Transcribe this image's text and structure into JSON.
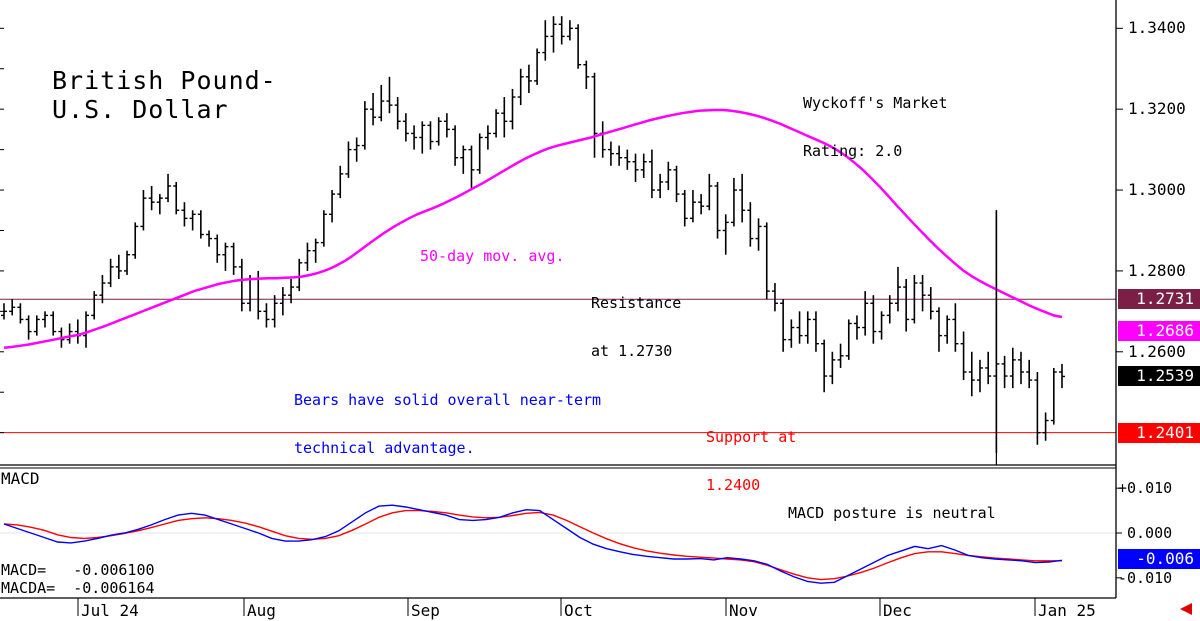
{
  "chart": {
    "title_line1": "British Pound-",
    "title_line2": "U.S. Dollar",
    "rating_line1": "Wyckoff's Market",
    "rating_line2": "Rating: 2.0",
    "ma_label": "50-day mov. avg.",
    "resistance_line1": "Resistance",
    "resistance_line2": "at 1.2730",
    "support_line1": "Support at",
    "support_line2": "1.2400",
    "bears_line1": "Bears have solid overall near-term",
    "bears_line2": "technical advantage.",
    "macd_label": "MACD",
    "macd_posture": "MACD posture is neutral",
    "macd_readout": "MACD=   -0.006100",
    "macda_readout": "MACDA=  -0.006164",
    "price_tags": {
      "resistance": "1.2731",
      "ma": "1.2686",
      "last": "1.2539",
      "support": "1.2401"
    },
    "macd_tag": "-0.006",
    "colors": {
      "ma": "#ff00ff",
      "resistance": "#7b1f47",
      "support": "#ff0000",
      "macd": "#0000ff",
      "macda": "#ff0000",
      "last": "#000000",
      "bears_text": "#0000ff"
    }
  },
  "chart_data": {
    "type": "ohlc",
    "y_axis_ticks": [
      "1.3400",
      "1.3200",
      "1.3000",
      "1.2800",
      "1.2600"
    ],
    "y_axis_values": [
      1.34,
      1.32,
      1.3,
      1.28,
      1.26
    ],
    "ylim": [
      1.232,
      1.347
    ],
    "x_axis_labels": [
      "Jul 24",
      "Aug",
      "Sep",
      "Oct",
      "Nov",
      "Dec",
      "Jan 25"
    ],
    "resistance_level": 1.273,
    "support_level": 1.24,
    "last_price": 1.2539,
    "ma50_last": 1.2686,
    "ohlc": [
      [
        1.269,
        1.272,
        1.268,
        1.27
      ],
      [
        1.27,
        1.273,
        1.269,
        1.271
      ],
      [
        1.271,
        1.272,
        1.267,
        1.268
      ],
      [
        1.268,
        1.269,
        1.263,
        1.265
      ],
      [
        1.265,
        1.269,
        1.264,
        1.268
      ],
      [
        1.268,
        1.27,
        1.266,
        1.269
      ],
      [
        1.269,
        1.27,
        1.264,
        1.265
      ],
      [
        1.265,
        1.266,
        1.261,
        1.263
      ],
      [
        1.263,
        1.267,
        1.262,
        1.265
      ],
      [
        1.265,
        1.268,
        1.262,
        1.264
      ],
      [
        1.264,
        1.27,
        1.261,
        1.269
      ],
      [
        1.269,
        1.275,
        1.268,
        1.274
      ],
      [
        1.274,
        1.279,
        1.272,
        1.277
      ],
      [
        1.277,
        1.283,
        1.276,
        1.281
      ],
      [
        1.281,
        1.284,
        1.278,
        1.28
      ],
      [
        1.28,
        1.285,
        1.279,
        1.284
      ],
      [
        1.284,
        1.292,
        1.283,
        1.291
      ],
      [
        1.291,
        1.3,
        1.29,
        1.298
      ],
      [
        1.298,
        1.301,
        1.295,
        1.297
      ],
      [
        1.297,
        1.299,
        1.294,
        1.298
      ],
      [
        1.298,
        1.304,
        1.297,
        1.301
      ],
      [
        1.301,
        1.302,
        1.294,
        1.295
      ],
      [
        1.295,
        1.297,
        1.291,
        1.293
      ],
      [
        1.293,
        1.295,
        1.29,
        1.294
      ],
      [
        1.294,
        1.295,
        1.288,
        1.289
      ],
      [
        1.289,
        1.29,
        1.286,
        1.288
      ],
      [
        1.288,
        1.289,
        1.282,
        1.284
      ],
      [
        1.284,
        1.287,
        1.28,
        1.286
      ],
      [
        1.286,
        1.287,
        1.279,
        1.281
      ],
      [
        1.281,
        1.283,
        1.27,
        1.272
      ],
      [
        1.272,
        1.279,
        1.27,
        1.278
      ],
      [
        1.278,
        1.28,
        1.268,
        1.27
      ],
      [
        1.27,
        1.272,
        1.266,
        1.268
      ],
      [
        1.268,
        1.274,
        1.266,
        1.272
      ],
      [
        1.272,
        1.276,
        1.269,
        1.274
      ],
      [
        1.274,
        1.278,
        1.272,
        1.276
      ],
      [
        1.276,
        1.283,
        1.275,
        1.282
      ],
      [
        1.282,
        1.287,
        1.28,
        1.285
      ],
      [
        1.285,
        1.288,
        1.282,
        1.287
      ],
      [
        1.287,
        1.295,
        1.286,
        1.294
      ],
      [
        1.294,
        1.3,
        1.292,
        1.299
      ],
      [
        1.299,
        1.306,
        1.298,
        1.304
      ],
      [
        1.304,
        1.312,
        1.303,
        1.31
      ],
      [
        1.31,
        1.313,
        1.307,
        1.311
      ],
      [
        1.311,
        1.322,
        1.31,
        1.32
      ],
      [
        1.32,
        1.324,
        1.316,
        1.318
      ],
      [
        1.318,
        1.326,
        1.317,
        1.322
      ],
      [
        1.322,
        1.328,
        1.319,
        1.321
      ],
      [
        1.321,
        1.323,
        1.315,
        1.317
      ],
      [
        1.317,
        1.319,
        1.312,
        1.314
      ],
      [
        1.314,
        1.316,
        1.31,
        1.313
      ],
      [
        1.313,
        1.317,
        1.309,
        1.316
      ],
      [
        1.316,
        1.317,
        1.31,
        1.312
      ],
      [
        1.312,
        1.318,
        1.311,
        1.317
      ],
      [
        1.317,
        1.319,
        1.313,
        1.315
      ],
      [
        1.315,
        1.316,
        1.306,
        1.308
      ],
      [
        1.308,
        1.311,
        1.304,
        1.31
      ],
      [
        1.31,
        1.311,
        1.3,
        1.305
      ],
      [
        1.305,
        1.314,
        1.304,
        1.313
      ],
      [
        1.313,
        1.316,
        1.31,
        1.314
      ],
      [
        1.314,
        1.32,
        1.313,
        1.319
      ],
      [
        1.319,
        1.323,
        1.313,
        1.317
      ],
      [
        1.317,
        1.325,
        1.315,
        1.323
      ],
      [
        1.323,
        1.33,
        1.321,
        1.328
      ],
      [
        1.328,
        1.331,
        1.324,
        1.327
      ],
      [
        1.327,
        1.335,
        1.326,
        1.334
      ],
      [
        1.334,
        1.342,
        1.332,
        1.338
      ],
      [
        1.338,
        1.343,
        1.334,
        1.341
      ],
      [
        1.341,
        1.343,
        1.336,
        1.338
      ],
      [
        1.338,
        1.342,
        1.337,
        1.34
      ],
      [
        1.34,
        1.341,
        1.33,
        1.331
      ],
      [
        1.331,
        1.332,
        1.325,
        1.328
      ],
      [
        1.328,
        1.329,
        1.308,
        1.314
      ],
      [
        1.314,
        1.317,
        1.308,
        1.31
      ],
      [
        1.31,
        1.312,
        1.306,
        1.309
      ],
      [
        1.309,
        1.311,
        1.306,
        1.308
      ],
      [
        1.308,
        1.31,
        1.305,
        1.307
      ],
      [
        1.307,
        1.309,
        1.302,
        1.305
      ],
      [
        1.305,
        1.309,
        1.303,
        1.307
      ],
      [
        1.307,
        1.31,
        1.298,
        1.3
      ],
      [
        1.3,
        1.304,
        1.298,
        1.302
      ],
      [
        1.302,
        1.307,
        1.3,
        1.305
      ],
      [
        1.305,
        1.306,
        1.297,
        1.299
      ],
      [
        1.299,
        1.3,
        1.291,
        1.293
      ],
      [
        1.293,
        1.3,
        1.292,
        1.297
      ],
      [
        1.297,
        1.299,
        1.294,
        1.296
      ],
      [
        1.296,
        1.304,
        1.295,
        1.301
      ],
      [
        1.301,
        1.302,
        1.288,
        1.29
      ],
      [
        1.29,
        1.294,
        1.284,
        1.292
      ],
      [
        1.292,
        1.303,
        1.291,
        1.3
      ],
      [
        1.3,
        1.304,
        1.292,
        1.295
      ],
      [
        1.295,
        1.297,
        1.286,
        1.288
      ],
      [
        1.288,
        1.293,
        1.285,
        1.291
      ],
      [
        1.291,
        1.292,
        1.273,
        1.275
      ],
      [
        1.275,
        1.277,
        1.27,
        1.272
      ],
      [
        1.272,
        1.273,
        1.26,
        1.263
      ],
      [
        1.263,
        1.268,
        1.261,
        1.266
      ],
      [
        1.266,
        1.27,
        1.262,
        1.264
      ],
      [
        1.264,
        1.27,
        1.262,
        1.268
      ],
      [
        1.268,
        1.27,
        1.26,
        1.262
      ],
      [
        1.262,
        1.263,
        1.25,
        1.254
      ],
      [
        1.254,
        1.26,
        1.252,
        1.258
      ],
      [
        1.258,
        1.262,
        1.256,
        1.259
      ],
      [
        1.259,
        1.268,
        1.258,
        1.267
      ],
      [
        1.267,
        1.269,
        1.263,
        1.266
      ],
      [
        1.266,
        1.275,
        1.264,
        1.272
      ],
      [
        1.272,
        1.274,
        1.262,
        1.265
      ],
      [
        1.265,
        1.27,
        1.263,
        1.269
      ],
      [
        1.269,
        1.274,
        1.267,
        1.272
      ],
      [
        1.272,
        1.281,
        1.27,
        1.276
      ],
      [
        1.276,
        1.278,
        1.265,
        1.268
      ],
      [
        1.268,
        1.279,
        1.267,
        1.277
      ],
      [
        1.277,
        1.279,
        1.27,
        1.274
      ],
      [
        1.274,
        1.276,
        1.268,
        1.27
      ],
      [
        1.27,
        1.271,
        1.26,
        1.264
      ],
      [
        1.264,
        1.269,
        1.262,
        1.268
      ],
      [
        1.268,
        1.272,
        1.26,
        1.262
      ],
      [
        1.262,
        1.265,
        1.253,
        1.255
      ],
      [
        1.255,
        1.26,
        1.249,
        1.253
      ],
      [
        1.253,
        1.258,
        1.25,
        1.256
      ],
      [
        1.256,
        1.26,
        1.252,
        1.254
      ],
      [
        1.254,
        1.295,
        1.235,
        1.257
      ],
      [
        1.257,
        1.259,
        1.251,
        1.254
      ],
      [
        1.254,
        1.261,
        1.251,
        1.258
      ],
      [
        1.258,
        1.26,
        1.252,
        1.255
      ],
      [
        1.255,
        1.258,
        1.251,
        1.253
      ],
      [
        1.253,
        1.255,
        1.237,
        1.24
      ],
      [
        1.24,
        1.245,
        1.238,
        1.243
      ],
      [
        1.243,
        1.256,
        1.242,
        1.255
      ],
      [
        1.255,
        1.257,
        1.251,
        1.2539
      ]
    ],
    "ma50": [
      1.261,
      1.2612,
      1.2615,
      1.2618,
      1.2622,
      1.2626,
      1.263,
      1.2634,
      1.2638,
      1.2642,
      1.2648,
      1.2655,
      1.2662,
      1.267,
      1.2678,
      1.2686,
      1.2694,
      1.2702,
      1.271,
      1.2718,
      1.2726,
      1.2734,
      1.2742,
      1.275,
      1.2756,
      1.2762,
      1.2768,
      1.2772,
      1.2776,
      1.2778,
      1.278,
      1.2781,
      1.2782,
      1.2782,
      1.2783,
      1.2784,
      1.2786,
      1.279,
      1.2795,
      1.2802,
      1.2811,
      1.2822,
      1.2835,
      1.285,
      1.2865,
      1.288,
      1.2894,
      1.2907,
      1.2919,
      1.293,
      1.294,
      1.2948,
      1.2956,
      1.2965,
      1.2975,
      1.2985,
      1.2996,
      1.3007,
      1.3018,
      1.303,
      1.3042,
      1.3054,
      1.3066,
      1.3077,
      1.3087,
      1.3096,
      1.3104,
      1.311,
      1.3115,
      1.312,
      1.3125,
      1.313,
      1.3136,
      1.3142,
      1.3148,
      1.3154,
      1.316,
      1.3166,
      1.3172,
      1.3177,
      1.3182,
      1.3186,
      1.319,
      1.3193,
      1.3196,
      1.3197,
      1.3198,
      1.3198,
      1.3196,
      1.3193,
      1.3189,
      1.3184,
      1.3178,
      1.3171,
      1.3163,
      1.3154,
      1.3145,
      1.3136,
      1.3127,
      1.3118,
      1.3108,
      1.3096,
      1.3082,
      1.3066,
      1.3048,
      1.3028,
      1.3007,
      1.2985,
      1.2962,
      1.294,
      1.2918,
      1.2897,
      1.2876,
      1.2856,
      1.2837,
      1.2819,
      1.2802,
      1.2788,
      1.2776,
      1.2765,
      1.2755,
      1.2745,
      1.2735,
      1.2725,
      1.2715,
      1.2706,
      1.2698,
      1.269,
      1.2686
    ],
    "macd": [
      0.002,
      0.001,
      0.0,
      -0.001,
      -0.002,
      -0.0022,
      -0.0018,
      -0.0012,
      -0.0005,
      0.0,
      0.0008,
      0.0018,
      0.003,
      0.004,
      0.0044,
      0.004,
      0.003,
      0.002,
      0.001,
      0.0,
      -0.0012,
      -0.0018,
      -0.0018,
      -0.0015,
      -0.0008,
      0.0005,
      0.0025,
      0.0045,
      0.006,
      0.0062,
      0.0058,
      0.0052,
      0.0046,
      0.004,
      0.003,
      0.0028,
      0.003,
      0.0035,
      0.0045,
      0.0052,
      0.005,
      0.003,
      0.001,
      -0.001,
      -0.0025,
      -0.0035,
      -0.0042,
      -0.0048,
      -0.0052,
      -0.0055,
      -0.0058,
      -0.0058,
      -0.0057,
      -0.006,
      -0.0055,
      -0.0058,
      -0.0062,
      -0.007,
      -0.0085,
      -0.0098,
      -0.0108,
      -0.0112,
      -0.011,
      -0.0095,
      -0.008,
      -0.0065,
      -0.005,
      -0.004,
      -0.003,
      -0.0035,
      -0.0028,
      -0.0038,
      -0.005,
      -0.0055,
      -0.0058,
      -0.006,
      -0.0062,
      -0.0066,
      -0.0065,
      -0.0061
    ],
    "macda": [
      0.002,
      0.0018,
      0.0013,
      0.0006,
      -0.0004,
      -0.001,
      -0.0012,
      -0.001,
      -0.0006,
      -0.0001,
      0.0005,
      0.0012,
      0.002,
      0.0028,
      0.0032,
      0.0034,
      0.0032,
      0.0028,
      0.0022,
      0.0014,
      0.0004,
      -0.0006,
      -0.0012,
      -0.0014,
      -0.0012,
      -0.0006,
      0.0006,
      0.002,
      0.0035,
      0.0045,
      0.005,
      0.005,
      0.0048,
      0.0045,
      0.004,
      0.0036,
      0.0034,
      0.0035,
      0.0039,
      0.0044,
      0.0046,
      0.004,
      0.0028,
      0.0014,
      0.0,
      -0.0013,
      -0.0024,
      -0.0033,
      -0.004,
      -0.0045,
      -0.0049,
      -0.0052,
      -0.0054,
      -0.0056,
      -0.0058,
      -0.006,
      -0.0064,
      -0.0072,
      -0.0082,
      -0.0092,
      -0.01,
      -0.0104,
      -0.0102,
      -0.0096,
      -0.0088,
      -0.0078,
      -0.0066,
      -0.0055,
      -0.0046,
      -0.0042,
      -0.0042,
      -0.0046,
      -0.005,
      -0.0053,
      -0.0056,
      -0.0058,
      -0.006,
      -0.0062,
      -0.0062,
      -0.0062
    ],
    "macd_axis_ticks": [
      "+0.010",
      "0.000",
      "-0.010"
    ],
    "macd_axis_values": [
      0.01,
      0.0,
      -0.01
    ],
    "macd_ylim": [
      -0.0145,
      0.0145
    ]
  }
}
